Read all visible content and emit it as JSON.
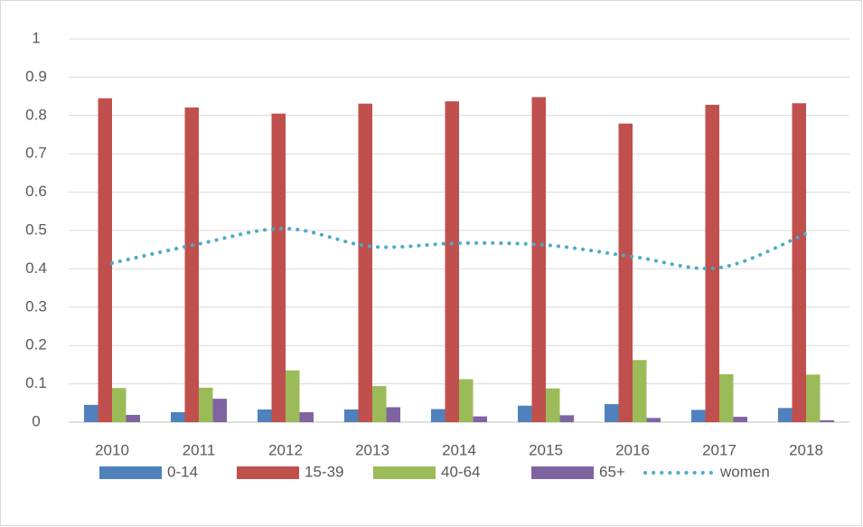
{
  "chart_data": {
    "type": "bar",
    "categories": [
      "2010",
      "2011",
      "2012",
      "2013",
      "2014",
      "2015",
      "2016",
      "2017",
      "2018"
    ],
    "series": [
      {
        "name": "0-14",
        "color": "#4f81bd",
        "values": [
          0.045,
          0.026,
          0.033,
          0.033,
          0.034,
          0.043,
          0.047,
          0.032,
          0.037
        ]
      },
      {
        "name": "15-39",
        "color": "#c0504d",
        "values": [
          0.845,
          0.821,
          0.805,
          0.831,
          0.837,
          0.848,
          0.779,
          0.828,
          0.832
        ]
      },
      {
        "name": "40-64",
        "color": "#9bbb59",
        "values": [
          0.089,
          0.09,
          0.135,
          0.094,
          0.112,
          0.088,
          0.162,
          0.125,
          0.124
        ]
      },
      {
        "name": "65+",
        "color": "#8064a2",
        "values": [
          0.019,
          0.061,
          0.026,
          0.039,
          0.015,
          0.018,
          0.011,
          0.014,
          0.005
        ]
      },
      {
        "name": "women",
        "type": "line",
        "dotted": true,
        "color": "#4bacc6",
        "values": [
          0.415,
          0.465,
          0.505,
          0.458,
          0.467,
          0.462,
          0.432,
          0.403,
          0.492
        ]
      }
    ],
    "ylim": [
      0,
      1
    ],
    "yticks": [
      0,
      0.1,
      0.2,
      0.3,
      0.4,
      0.5,
      0.6,
      0.7,
      0.8,
      0.9,
      1
    ],
    "grid": true,
    "legend": "bottom"
  }
}
